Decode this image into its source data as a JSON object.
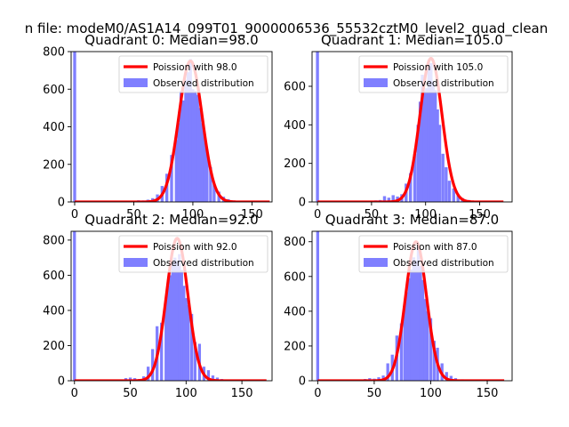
{
  "figure": {
    "suptitle": "n file: modeM0/AS1A14_099T01_9000006536_55532cztM0_level2_quad_clean",
    "colors": {
      "hist": "#7f7fff",
      "fit": "#ff0000",
      "axis": "#000000",
      "background": "#ffffff"
    }
  },
  "chart_data": [
    {
      "type": "histogram+line",
      "title": "Quadrant 0: Median=98.0",
      "median": 98.0,
      "xlim": [
        -3,
        167
      ],
      "ylim": [
        0,
        800
      ],
      "xticks": [
        0,
        50,
        100,
        150
      ],
      "yticks": [
        0,
        200,
        400,
        600,
        800
      ],
      "xticks_clipped": [
        false,
        false,
        false,
        false
      ],
      "legend": {
        "position": "top-right",
        "entries": [
          "Poission with 98.0",
          "Observed distribution"
        ]
      },
      "bins": [
        {
          "x": 0,
          "y": 820
        },
        {
          "x": 50,
          "y": 7
        },
        {
          "x": 54,
          "y": 9
        },
        {
          "x": 58,
          "y": 8
        },
        {
          "x": 62,
          "y": 12
        },
        {
          "x": 66,
          "y": 20
        },
        {
          "x": 70,
          "y": 40
        },
        {
          "x": 74,
          "y": 85
        },
        {
          "x": 78,
          "y": 150
        },
        {
          "x": 82,
          "y": 250
        },
        {
          "x": 86,
          "y": 330
        },
        {
          "x": 88,
          "y": 420
        },
        {
          "x": 90,
          "y": 590
        },
        {
          "x": 92,
          "y": 540
        },
        {
          "x": 94,
          "y": 650
        },
        {
          "x": 96,
          "y": 690
        },
        {
          "x": 98,
          "y": 760
        },
        {
          "x": 100,
          "y": 600
        },
        {
          "x": 102,
          "y": 590
        },
        {
          "x": 104,
          "y": 570
        },
        {
          "x": 106,
          "y": 500
        },
        {
          "x": 108,
          "y": 420
        },
        {
          "x": 110,
          "y": 355
        },
        {
          "x": 112,
          "y": 280
        },
        {
          "x": 115,
          "y": 185
        },
        {
          "x": 118,
          "y": 95
        },
        {
          "x": 122,
          "y": 55
        },
        {
          "x": 126,
          "y": 28
        },
        {
          "x": 130,
          "y": 15
        },
        {
          "x": 134,
          "y": 8
        },
        {
          "x": 138,
          "y": 5
        }
      ],
      "bin_width": 2.5,
      "fit": {
        "mean": 98.0,
        "sd": 9.9,
        "peak": 750,
        "xrange": [
          0,
          165
        ]
      }
    },
    {
      "type": "histogram+line",
      "title": "Quadrant 1: Median=105.0",
      "median": 105.0,
      "xlim": [
        -5,
        180
      ],
      "ylim": [
        0,
        780
      ],
      "xticks": [
        0,
        50,
        100,
        150
      ],
      "yticks": [
        0,
        200,
        400,
        600
      ],
      "xticks_clipped": [
        false,
        false,
        true,
        true
      ],
      "legend": {
        "position": "top-right",
        "entries": [
          "Poission with 105.0",
          "Observed distribution"
        ]
      },
      "bins": [
        {
          "x": 0,
          "y": 800
        },
        {
          "x": 54,
          "y": 8
        },
        {
          "x": 58,
          "y": 10
        },
        {
          "x": 62,
          "y": 30
        },
        {
          "x": 66,
          "y": 22
        },
        {
          "x": 70,
          "y": 35
        },
        {
          "x": 74,
          "y": 28
        },
        {
          "x": 78,
          "y": 40
        },
        {
          "x": 82,
          "y": 95
        },
        {
          "x": 86,
          "y": 150
        },
        {
          "x": 90,
          "y": 250
        },
        {
          "x": 93,
          "y": 400
        },
        {
          "x": 95,
          "y": 520
        },
        {
          "x": 97,
          "y": 660
        },
        {
          "x": 99,
          "y": 575
        },
        {
          "x": 101,
          "y": 590
        },
        {
          "x": 103,
          "y": 700
        },
        {
          "x": 105,
          "y": 720
        },
        {
          "x": 107,
          "y": 625
        },
        {
          "x": 109,
          "y": 580
        },
        {
          "x": 111,
          "y": 480
        },
        {
          "x": 113,
          "y": 400
        },
        {
          "x": 116,
          "y": 250
        },
        {
          "x": 119,
          "y": 180
        },
        {
          "x": 122,
          "y": 110
        },
        {
          "x": 126,
          "y": 70
        },
        {
          "x": 130,
          "y": 40
        },
        {
          "x": 134,
          "y": 20
        },
        {
          "x": 140,
          "y": 10
        },
        {
          "x": 150,
          "y": 5
        }
      ],
      "bin_width": 2.8,
      "fit": {
        "mean": 105.0,
        "sd": 10.2,
        "peak": 745,
        "xrange": [
          0,
          172
        ]
      }
    },
    {
      "type": "histogram+line",
      "title": "Quadrant 2: Median=92.0",
      "median": 92.0,
      "xlim": [
        -3,
        177
      ],
      "ylim": [
        0,
        850
      ],
      "xticks": [
        0,
        50,
        100,
        150
      ],
      "yticks": [
        0,
        200,
        400,
        600,
        800
      ],
      "xticks_clipped": [
        false,
        false,
        false,
        false
      ],
      "legend": {
        "position": "top-right",
        "entries": [
          "Poission with 92.0",
          "Observed distribution"
        ]
      },
      "bins": [
        {
          "x": 0,
          "y": 880
        },
        {
          "x": 46,
          "y": 15
        },
        {
          "x": 50,
          "y": 18
        },
        {
          "x": 54,
          "y": 15
        },
        {
          "x": 58,
          "y": 10
        },
        {
          "x": 62,
          "y": 25
        },
        {
          "x": 66,
          "y": 80
        },
        {
          "x": 70,
          "y": 180
        },
        {
          "x": 74,
          "y": 310
        },
        {
          "x": 78,
          "y": 330
        },
        {
          "x": 82,
          "y": 470
        },
        {
          "x": 84,
          "y": 540
        },
        {
          "x": 86,
          "y": 600
        },
        {
          "x": 88,
          "y": 680
        },
        {
          "x": 90,
          "y": 700
        },
        {
          "x": 92,
          "y": 680
        },
        {
          "x": 94,
          "y": 720
        },
        {
          "x": 96,
          "y": 630
        },
        {
          "x": 98,
          "y": 540
        },
        {
          "x": 100,
          "y": 470
        },
        {
          "x": 102,
          "y": 430
        },
        {
          "x": 105,
          "y": 380
        },
        {
          "x": 108,
          "y": 220
        },
        {
          "x": 112,
          "y": 210
        },
        {
          "x": 116,
          "y": 80
        },
        {
          "x": 120,
          "y": 60
        },
        {
          "x": 124,
          "y": 30
        },
        {
          "x": 128,
          "y": 18
        },
        {
          "x": 132,
          "y": 10
        }
      ],
      "bin_width": 2.6,
      "fit": {
        "mean": 92.0,
        "sd": 9.6,
        "peak": 810,
        "xrange": [
          0,
          172
        ]
      }
    },
    {
      "type": "histogram+line",
      "title": "Quadrant 3: Median=87.0",
      "median": 87.0,
      "xlim": [
        -5,
        172
      ],
      "ylim": [
        0,
        860
      ],
      "xticks": [
        0,
        50,
        100,
        150
      ],
      "yticks": [
        0,
        200,
        400,
        600,
        800
      ],
      "xticks_clipped": [
        false,
        false,
        false,
        false
      ],
      "legend": {
        "position": "top-right",
        "entries": [
          "Poission with 87.0",
          "Observed distribution"
        ]
      },
      "bins": [
        {
          "x": 0,
          "y": 880
        },
        {
          "x": 42,
          "y": 10
        },
        {
          "x": 46,
          "y": 15
        },
        {
          "x": 50,
          "y": 12
        },
        {
          "x": 54,
          "y": 20
        },
        {
          "x": 58,
          "y": 30
        },
        {
          "x": 62,
          "y": 100
        },
        {
          "x": 66,
          "y": 150
        },
        {
          "x": 70,
          "y": 260
        },
        {
          "x": 74,
          "y": 330
        },
        {
          "x": 77,
          "y": 430
        },
        {
          "x": 79,
          "y": 510
        },
        {
          "x": 81,
          "y": 590
        },
        {
          "x": 83,
          "y": 640
        },
        {
          "x": 85,
          "y": 710
        },
        {
          "x": 87,
          "y": 690
        },
        {
          "x": 89,
          "y": 780
        },
        {
          "x": 91,
          "y": 660
        },
        {
          "x": 93,
          "y": 580
        },
        {
          "x": 95,
          "y": 470
        },
        {
          "x": 97,
          "y": 400
        },
        {
          "x": 100,
          "y": 360
        },
        {
          "x": 103,
          "y": 230
        },
        {
          "x": 106,
          "y": 190
        },
        {
          "x": 110,
          "y": 100
        },
        {
          "x": 114,
          "y": 50
        },
        {
          "x": 118,
          "y": 28
        },
        {
          "x": 122,
          "y": 15
        },
        {
          "x": 128,
          "y": 8
        }
      ],
      "bin_width": 2.6,
      "fit": {
        "mean": 87.0,
        "sd": 9.3,
        "peak": 800,
        "xrange": [
          0,
          165
        ]
      }
    }
  ]
}
